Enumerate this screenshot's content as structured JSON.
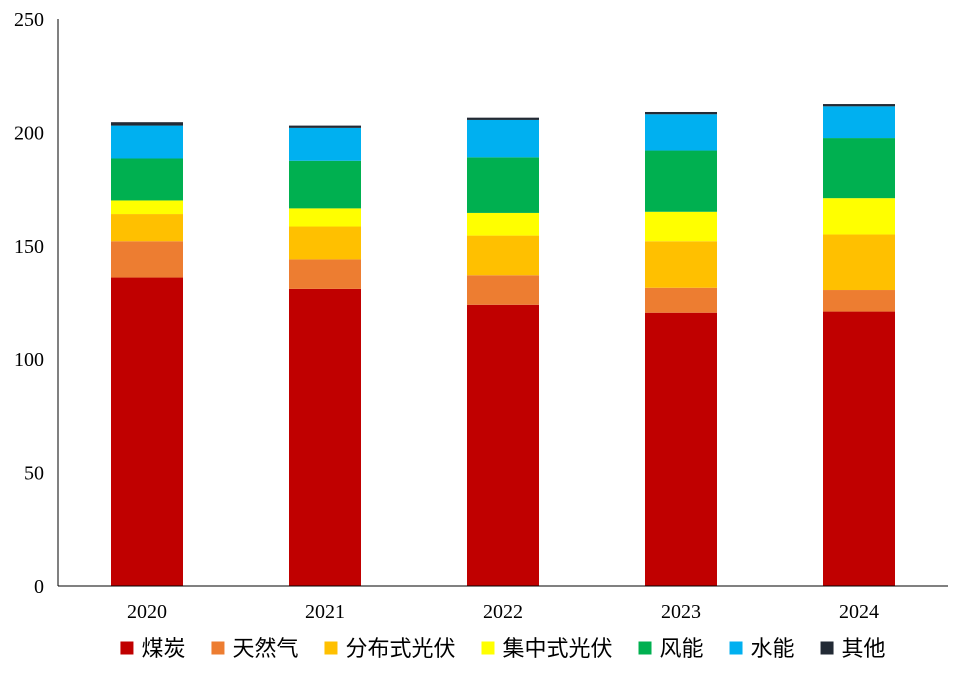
{
  "chart_data": {
    "type": "bar",
    "stacked": true,
    "categories": [
      "2020",
      "2021",
      "2022",
      "2023",
      "2024"
    ],
    "ylim": [
      0,
      250
    ],
    "yticks": [
      0,
      50,
      100,
      150,
      200,
      250
    ],
    "grid": false,
    "legend_position": "bottom",
    "series": [
      {
        "name": "煤炭",
        "color": "#C00000",
        "values": [
          136,
          131,
          124,
          120.5,
          121
        ]
      },
      {
        "name": "天然气",
        "color": "#ED7D31",
        "values": [
          16,
          13,
          13,
          11,
          9.5
        ]
      },
      {
        "name": "分布式光伏",
        "color": "#FFC000",
        "values": [
          12,
          14.5,
          17.5,
          20.5,
          24.5
        ]
      },
      {
        "name": "集中式光伏",
        "color": "#FFFF00",
        "values": [
          6,
          8,
          10,
          13,
          16
        ]
      },
      {
        "name": "风能",
        "color": "#00B050",
        "values": [
          18.5,
          21,
          24.5,
          27,
          26.5
        ]
      },
      {
        "name": "水能",
        "color": "#00B0F0",
        "values": [
          14.5,
          14.5,
          16.5,
          16,
          14
        ]
      },
      {
        "name": "其他",
        "color": "#222A35",
        "values": [
          1.5,
          1,
          1,
          1,
          1
        ]
      }
    ]
  }
}
